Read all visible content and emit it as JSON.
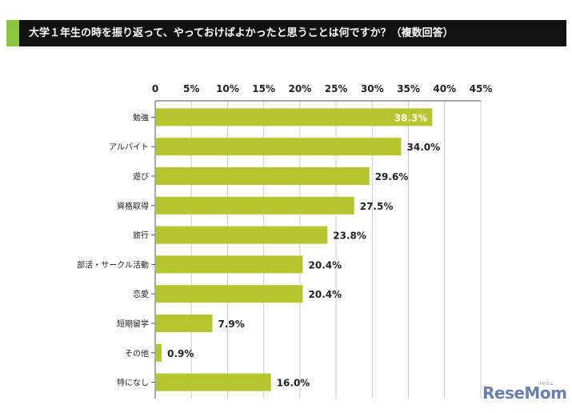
{
  "title": "大学１年生の時を振り返って、やっておけばよかったと思うことは何ですか？（複数回答）",
  "watermark": "ReseMom",
  "watermark_sub": "リセマム",
  "colors": {
    "bar": "#b3c62c",
    "accent": "#8cc63f",
    "title_bg": "#111111",
    "grid": "#cccccc",
    "axis": "#555555",
    "label": "#222222"
  },
  "chart_data": {
    "type": "bar",
    "orientation": "horizontal",
    "title": "大学１年生の時を振り返って、やっておけばよかったと思うことは何ですか？（複数回答）",
    "categories": [
      "勉強",
      "アルバイト",
      "遊び",
      "資格取得",
      "旅行",
      "部活・サークル活動",
      "恋愛",
      "短期留学",
      "その他",
      "特になし"
    ],
    "values": [
      38.3,
      34.0,
      29.6,
      27.5,
      23.8,
      20.4,
      20.4,
      7.9,
      0.9,
      16.0
    ],
    "value_labels": [
      "38.3%",
      "34.0%",
      "29.6%",
      "27.5%",
      "23.8%",
      "20.4%",
      "20.4%",
      "7.9%",
      "0.9%",
      "16.0%"
    ],
    "xticks": [
      "0",
      "5%",
      "10%",
      "15%",
      "20%",
      "25%",
      "30%",
      "35%",
      "40%",
      "45%"
    ],
    "xlim": [
      0,
      45
    ],
    "xaxis_position": "top",
    "grid": true
  }
}
